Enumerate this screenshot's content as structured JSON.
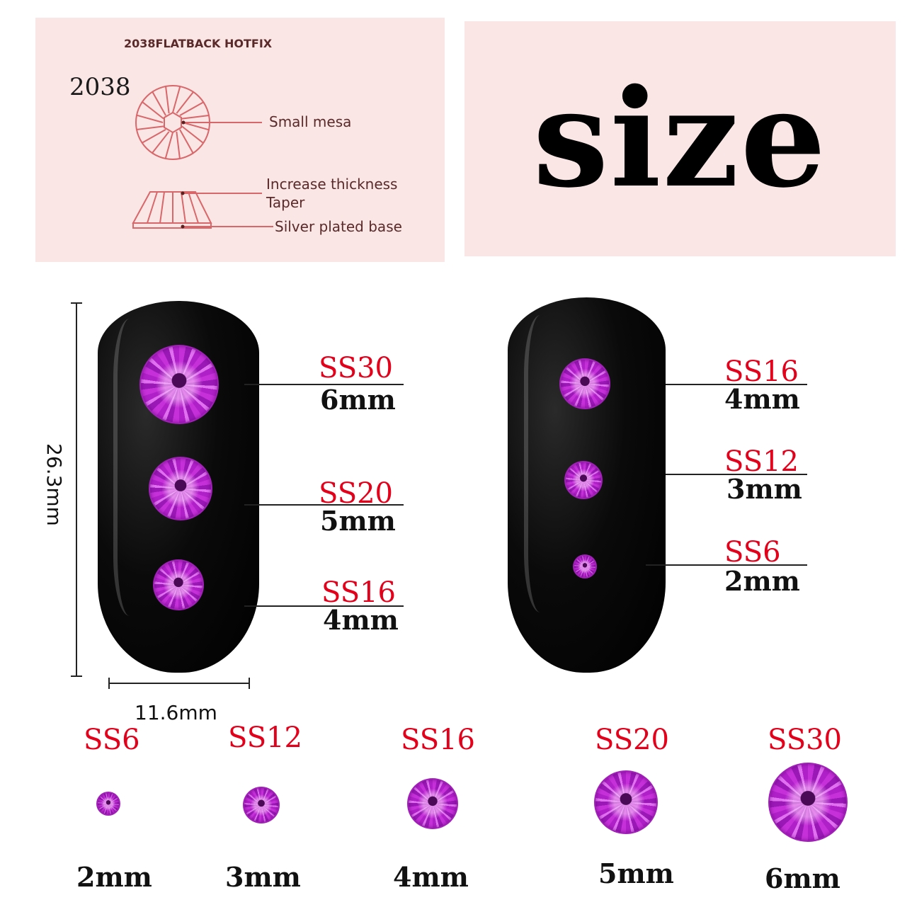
{
  "diagram": {
    "header": "2038FLATBACK HOTFIX",
    "model": "2038",
    "labels": {
      "small_mesa": "Small mesa",
      "increase_thickness": "Increase thickness",
      "taper": "Taper",
      "silver_base": "Silver plated base"
    },
    "line_color": "#d9676a",
    "panel_color": "#f9e6e5"
  },
  "title": "size",
  "dimensions": {
    "height": "26.3mm",
    "width": "11.6mm"
  },
  "left_nail": [
    {
      "ss": "SS30",
      "mm": "6mm"
    },
    {
      "ss": "SS20",
      "mm": "5mm"
    },
    {
      "ss": "SS16",
      "mm": "4mm"
    }
  ],
  "right_nail": [
    {
      "ss": "SS16",
      "mm": "4mm"
    },
    {
      "ss": "SS12",
      "mm": "3mm"
    },
    {
      "ss": "SS6",
      "mm": "2mm"
    }
  ],
  "lineup": [
    {
      "ss": "SS6",
      "mm": "2mm"
    },
    {
      "ss": "SS12",
      "mm": "3mm"
    },
    {
      "ss": "SS16",
      "mm": "4mm"
    },
    {
      "ss": "SS20",
      "mm": "5mm"
    },
    {
      "ss": "SS30",
      "mm": "6mm"
    }
  ],
  "colors": {
    "ss_label": "#e3001b",
    "stone": "#c530d8",
    "nail": "#000000"
  }
}
